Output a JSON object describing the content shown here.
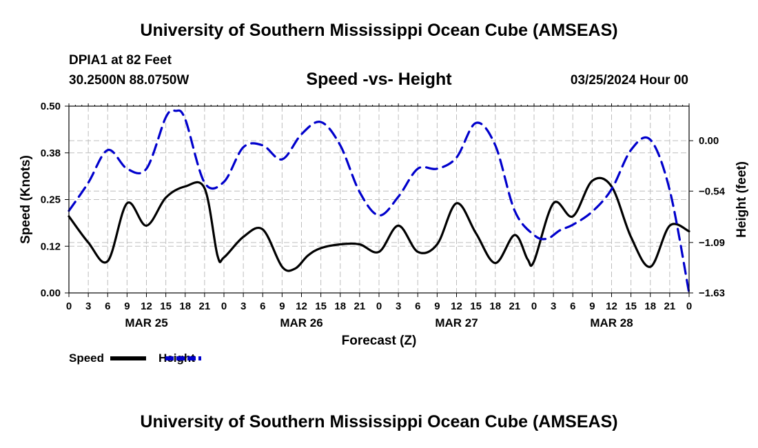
{
  "header": {
    "main_title": "University of Southern Mississippi Ocean Cube (AMSEAS)",
    "station": "DPIA1 at 82 Feet",
    "coordinates": "30.2500N  88.0750W",
    "subtitle": "Speed -vs- Height",
    "datetime": "03/25/2024 Hour 00"
  },
  "footer": {
    "title": "University of Southern Mississippi Ocean Cube (AMSEAS)"
  },
  "chart_data": {
    "type": "line",
    "title": "Speed -vs- Height",
    "xlabel": "Forecast (Z)",
    "ylabel_left": "Speed (Knots)",
    "ylabel_right": "Height (feet)",
    "x_range_hours": [
      0,
      96
    ],
    "x_tick_labels": [
      "0",
      "3",
      "6",
      "9",
      "12",
      "15",
      "18",
      "21",
      "0",
      "3",
      "6",
      "9",
      "12",
      "15",
      "18",
      "21",
      "0",
      "3",
      "6",
      "9",
      "12",
      "15",
      "18",
      "21",
      "0",
      "3",
      "6",
      "9",
      "12",
      "15",
      "18",
      "21",
      "0"
    ],
    "day_labels": [
      {
        "label": "MAR 25",
        "hour": 12
      },
      {
        "label": "MAR 26",
        "hour": 36
      },
      {
        "label": "MAR 27",
        "hour": 60
      },
      {
        "label": "MAR 28",
        "hour": 84
      }
    ],
    "left_axis": {
      "range": [
        0,
        0.5
      ],
      "ticks": [
        0.0,
        0.125,
        0.25,
        0.375,
        0.5
      ],
      "tick_labels": [
        "0.00",
        "0.12",
        "0.25",
        "0.38",
        "0.50"
      ]
    },
    "right_axis": {
      "range": [
        -1.63,
        0.37
      ],
      "ticks": [
        0.0,
        -0.54,
        -1.09,
        -1.63
      ],
      "tick_labels": [
        "0.00",
        "−0.54",
        "−1.09",
        "−1.63"
      ]
    },
    "legend": [
      {
        "name": "Speed",
        "color": "#000000",
        "style": "solid"
      },
      {
        "name": "Height",
        "color": "#0000cc",
        "style": "dashed"
      }
    ],
    "series": [
      {
        "name": "Speed",
        "axis": "left",
        "color": "#000000",
        "x": [
          0,
          3,
          6,
          9,
          12,
          15,
          18,
          21,
          23,
          24,
          27,
          30,
          33,
          35,
          37,
          39,
          42,
          45,
          48,
          51,
          54,
          57,
          60,
          63,
          66,
          69,
          71,
          72,
          75,
          78,
          81,
          84,
          87,
          90,
          93,
          96
        ],
        "values": [
          0.205,
          0.135,
          0.085,
          0.24,
          0.18,
          0.255,
          0.285,
          0.28,
          0.1,
          0.095,
          0.15,
          0.17,
          0.07,
          0.065,
          0.1,
          0.12,
          0.13,
          0.13,
          0.11,
          0.18,
          0.11,
          0.13,
          0.24,
          0.16,
          0.08,
          0.155,
          0.09,
          0.085,
          0.24,
          0.205,
          0.3,
          0.285,
          0.15,
          0.07,
          0.18,
          0.165
        ]
      },
      {
        "name": "Height",
        "axis": "right",
        "color": "#0000cc",
        "x": [
          0,
          3,
          6,
          9,
          12,
          15,
          16.5,
          18,
          21,
          24,
          27,
          30,
          33,
          36,
          39,
          42,
          45,
          48,
          51,
          54,
          57,
          60,
          63,
          66,
          69,
          72,
          74,
          76,
          78,
          81,
          84,
          87,
          90,
          93,
          96
        ],
        "values": [
          -0.75,
          -0.45,
          -0.1,
          -0.3,
          -0.3,
          0.25,
          0.32,
          0.23,
          -0.45,
          -0.44,
          -0.07,
          -0.05,
          -0.2,
          0.07,
          0.2,
          -0.05,
          -0.55,
          -0.8,
          -0.6,
          -0.3,
          -0.3,
          -0.18,
          0.19,
          -0.05,
          -0.75,
          -1.01,
          -1.05,
          -0.96,
          -0.9,
          -0.76,
          -0.52,
          -0.1,
          0.01,
          -0.53,
          -1.63
        ]
      }
    ]
  }
}
